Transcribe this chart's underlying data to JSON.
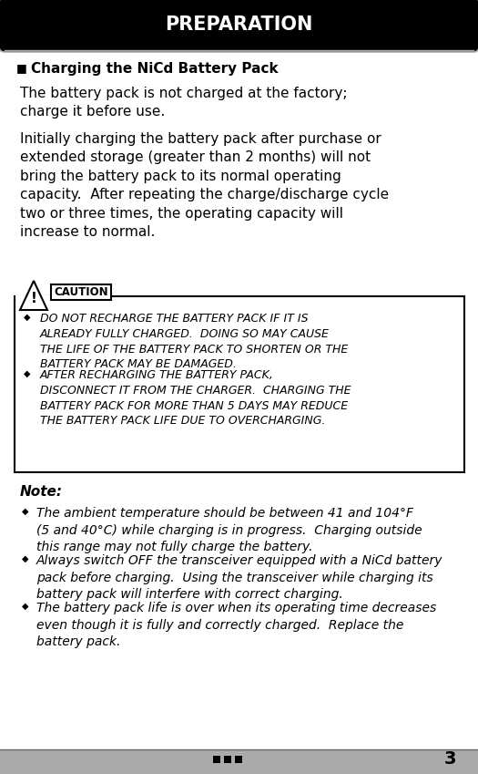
{
  "title": "PREPARATION",
  "title_bg": "#000000",
  "title_color": "#ffffff",
  "section_heading": "Charging the NiCd Battery Pack",
  "para1": "The battery pack is not charged at the factory;\ncharge it before use.",
  "para2": "Initially charging the battery pack after purchase or\nextended storage (greater than 2 months) will not\nbring the battery pack to its normal operating\ncapacity.  After repeating the charge/discharge cycle\ntwo or three times, the operating capacity will\nincrease to normal.",
  "caution_label": "CAUTION",
  "caution_items": [
    "DO NOT RECHARGE THE BATTERY PACK IF IT IS\nALREADY FULLY CHARGED.  DOING SO MAY CAUSE\nTHE LIFE OF THE BATTERY PACK TO SHORTEN OR THE\nBATTERY PACK MAY BE DAMAGED.",
    "AFTER RECHARGING THE BATTERY PACK,\nDISCONNECT IT FROM THE CHARGER.  CHARGING THE\nBATTERY PACK FOR MORE THAN 5 DAYS MAY REDUCE\nTHE BATTERY PACK LIFE DUE TO OVERCHARGING."
  ],
  "note_label": "Note:",
  "note_items": [
    "The ambient temperature should be between 41 and 104°F\n(5 and 40°C) while charging is in progress.  Charging outside\nthis range may not fully charge the battery.",
    "Always switch OFF the transceiver equipped with a NiCd battery\npack before charging.  Using the transceiver while charging its\nbattery pack will interfere with correct charging.",
    "The battery pack life is over when its operating time decreases\neven though it is fully and correctly charged.  Replace the\nbattery pack."
  ],
  "page_number": "3",
  "bg_color": "#ffffff",
  "text_color": "#000000",
  "border_color": "#000000",
  "gray_line_color": "#aaaaaa"
}
